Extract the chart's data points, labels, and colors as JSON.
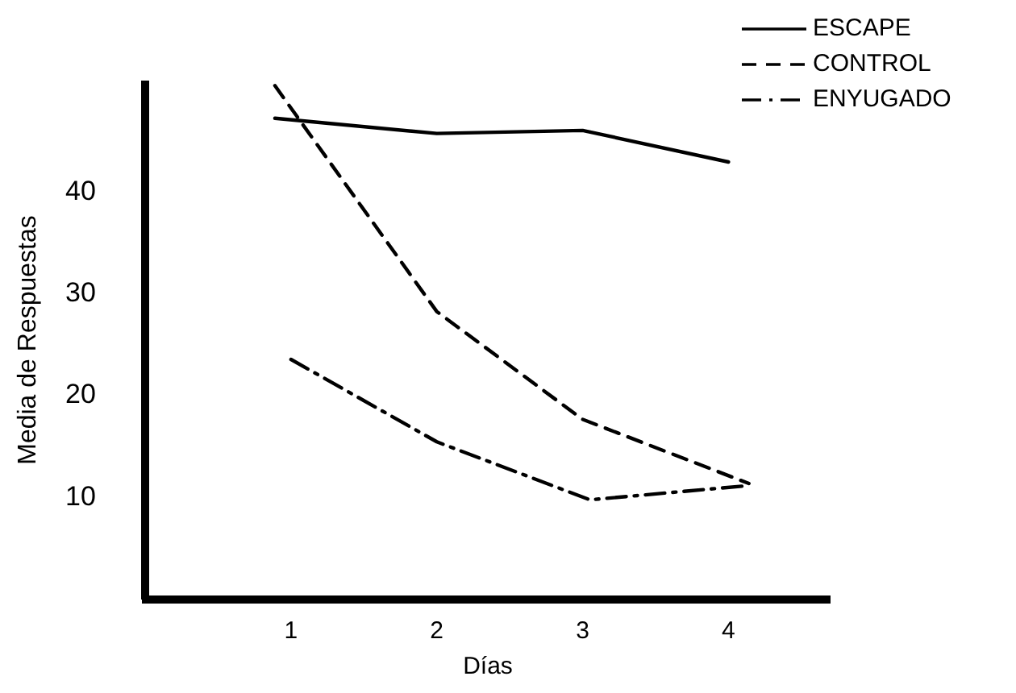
{
  "chart_data": {
    "type": "line",
    "xlabel": "Días",
    "ylabel": "Media de Respuestas",
    "xlim": [
      0,
      4.7
    ],
    "xticks": [
      1,
      2,
      3,
      4
    ],
    "ylim": [
      0,
      51
    ],
    "yticks": [
      10,
      20,
      30,
      40
    ],
    "legend": "top right",
    "grid": false,
    "marker": "none",
    "series": [
      {
        "name": "ESCAPE",
        "color": "#000000",
        "line_style": "solid",
        "x": [
          0.89,
          2,
          3,
          4
        ],
        "values": [
          47.3,
          45.8,
          46.1,
          43
        ]
      },
      {
        "name": "CONTROL",
        "color": "#000000",
        "line_style": "dashed",
        "x": [
          0.89,
          2,
          3,
          4.14
        ],
        "values": [
          50.5,
          28.3,
          17.7,
          11.4
        ]
      },
      {
        "name": "ENYUGADO",
        "color": "#000000",
        "line_style": "dashdot",
        "x": [
          1,
          2,
          3.05,
          4.14
        ],
        "values": [
          23.6,
          15.5,
          9.8,
          11.2
        ]
      }
    ]
  }
}
